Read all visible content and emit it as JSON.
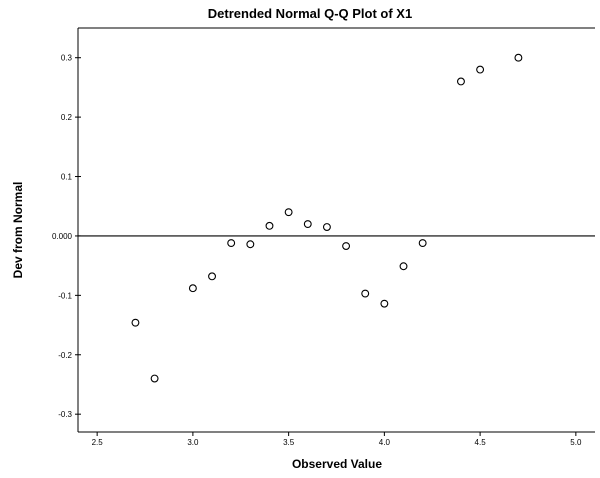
{
  "chart_data": {
    "type": "scatter",
    "title": "Detrended Normal Q-Q Plot of X1",
    "xlabel": "Observed Value",
    "ylabel": "Dev from Normal",
    "xlim": [
      2.4,
      5.1
    ],
    "ylim": [
      -0.33,
      0.35
    ],
    "x_ticks": [
      2.5,
      3.0,
      3.5,
      4.0,
      4.5,
      5.0
    ],
    "x_tick_labels": [
      "2.5",
      "3.0",
      "3.5",
      "4.0",
      "4.5",
      "5.0"
    ],
    "y_ticks": [
      0.3,
      0.2,
      0.1,
      0.0,
      -0.1,
      -0.2,
      -0.3
    ],
    "y_tick_labels": [
      "0.3",
      "0.2",
      "0.1",
      "0.000",
      "-0.1",
      "-0.2",
      "-0.3"
    ],
    "reference_line_y": 0.0,
    "grid": false,
    "points": [
      {
        "x": 2.7,
        "y": -0.146
      },
      {
        "x": 2.8,
        "y": -0.24
      },
      {
        "x": 3.0,
        "y": -0.088
      },
      {
        "x": 3.1,
        "y": -0.068
      },
      {
        "x": 3.2,
        "y": -0.012
      },
      {
        "x": 3.3,
        "y": -0.014
      },
      {
        "x": 3.4,
        "y": 0.017
      },
      {
        "x": 3.5,
        "y": 0.04
      },
      {
        "x": 3.6,
        "y": 0.02
      },
      {
        "x": 3.7,
        "y": 0.015
      },
      {
        "x": 3.8,
        "y": -0.017
      },
      {
        "x": 3.9,
        "y": -0.097
      },
      {
        "x": 4.0,
        "y": -0.114
      },
      {
        "x": 4.1,
        "y": -0.051
      },
      {
        "x": 4.2,
        "y": -0.012
      },
      {
        "x": 4.4,
        "y": 0.26
      },
      {
        "x": 4.5,
        "y": 0.28
      },
      {
        "x": 4.7,
        "y": 0.3
      }
    ]
  }
}
